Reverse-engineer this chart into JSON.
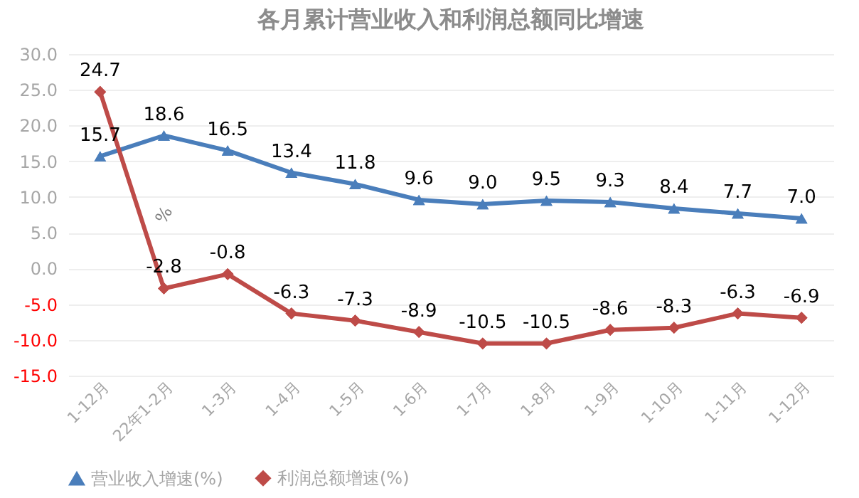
{
  "chart_data": {
    "type": "line",
    "title": "各月累计营业收入和利润总额同比增速",
    "categories": [
      "1-12月",
      "22年1-2月",
      "1-3月",
      "1-4月",
      "1-5月",
      "1-6月",
      "1-7月",
      "1-8月",
      "1-9月",
      "1-10月",
      "1-11月",
      "1-12月"
    ],
    "series": [
      {
        "name": "营业收入增速(%)",
        "color": "#4a7ebb",
        "marker": "triangle",
        "values": [
          15.7,
          18.6,
          16.5,
          13.4,
          11.8,
          9.6,
          9.0,
          9.5,
          9.3,
          8.4,
          7.7,
          7.0
        ],
        "value_labels": [
          "15.7",
          "18.6",
          "16.5",
          "13.4",
          "11.8",
          "9.6",
          "9.0",
          "9.5",
          "9.3",
          "8.4",
          "7.7",
          "7.0"
        ]
      },
      {
        "name": "利润总额增速(%)",
        "color": "#be4b48",
        "marker": "diamond",
        "values": [
          24.7,
          -2.8,
          -0.8,
          -6.3,
          -7.3,
          -8.9,
          -10.5,
          -10.5,
          -8.6,
          -8.3,
          -6.3,
          -6.9
        ],
        "value_labels": [
          "24.7",
          "-2.8",
          "-0.8",
          "-6.3",
          "-7.3",
          "-8.9",
          "-10.5",
          "-10.5",
          "-8.6",
          "-8.3",
          "-6.3",
          "-6.9"
        ]
      }
    ],
    "ylim": [
      -15,
      30
    ],
    "yticks": [
      {
        "value": -15,
        "label": "-15.0"
      },
      {
        "value": -10,
        "label": "-10.0"
      },
      {
        "value": -5,
        "label": "-5.0"
      },
      {
        "value": 0,
        "label": "0.0"
      },
      {
        "value": 5,
        "label": "5.0"
      },
      {
        "value": 10,
        "label": "10.0"
      },
      {
        "value": 15,
        "label": "15.0"
      },
      {
        "value": 20,
        "label": "20.0"
      },
      {
        "value": 25,
        "label": "25.0"
      },
      {
        "value": 30,
        "label": "30.0"
      }
    ],
    "grid": "y",
    "legend": "bottom",
    "line_style": "solid",
    "annotations": [
      "%"
    ]
  }
}
